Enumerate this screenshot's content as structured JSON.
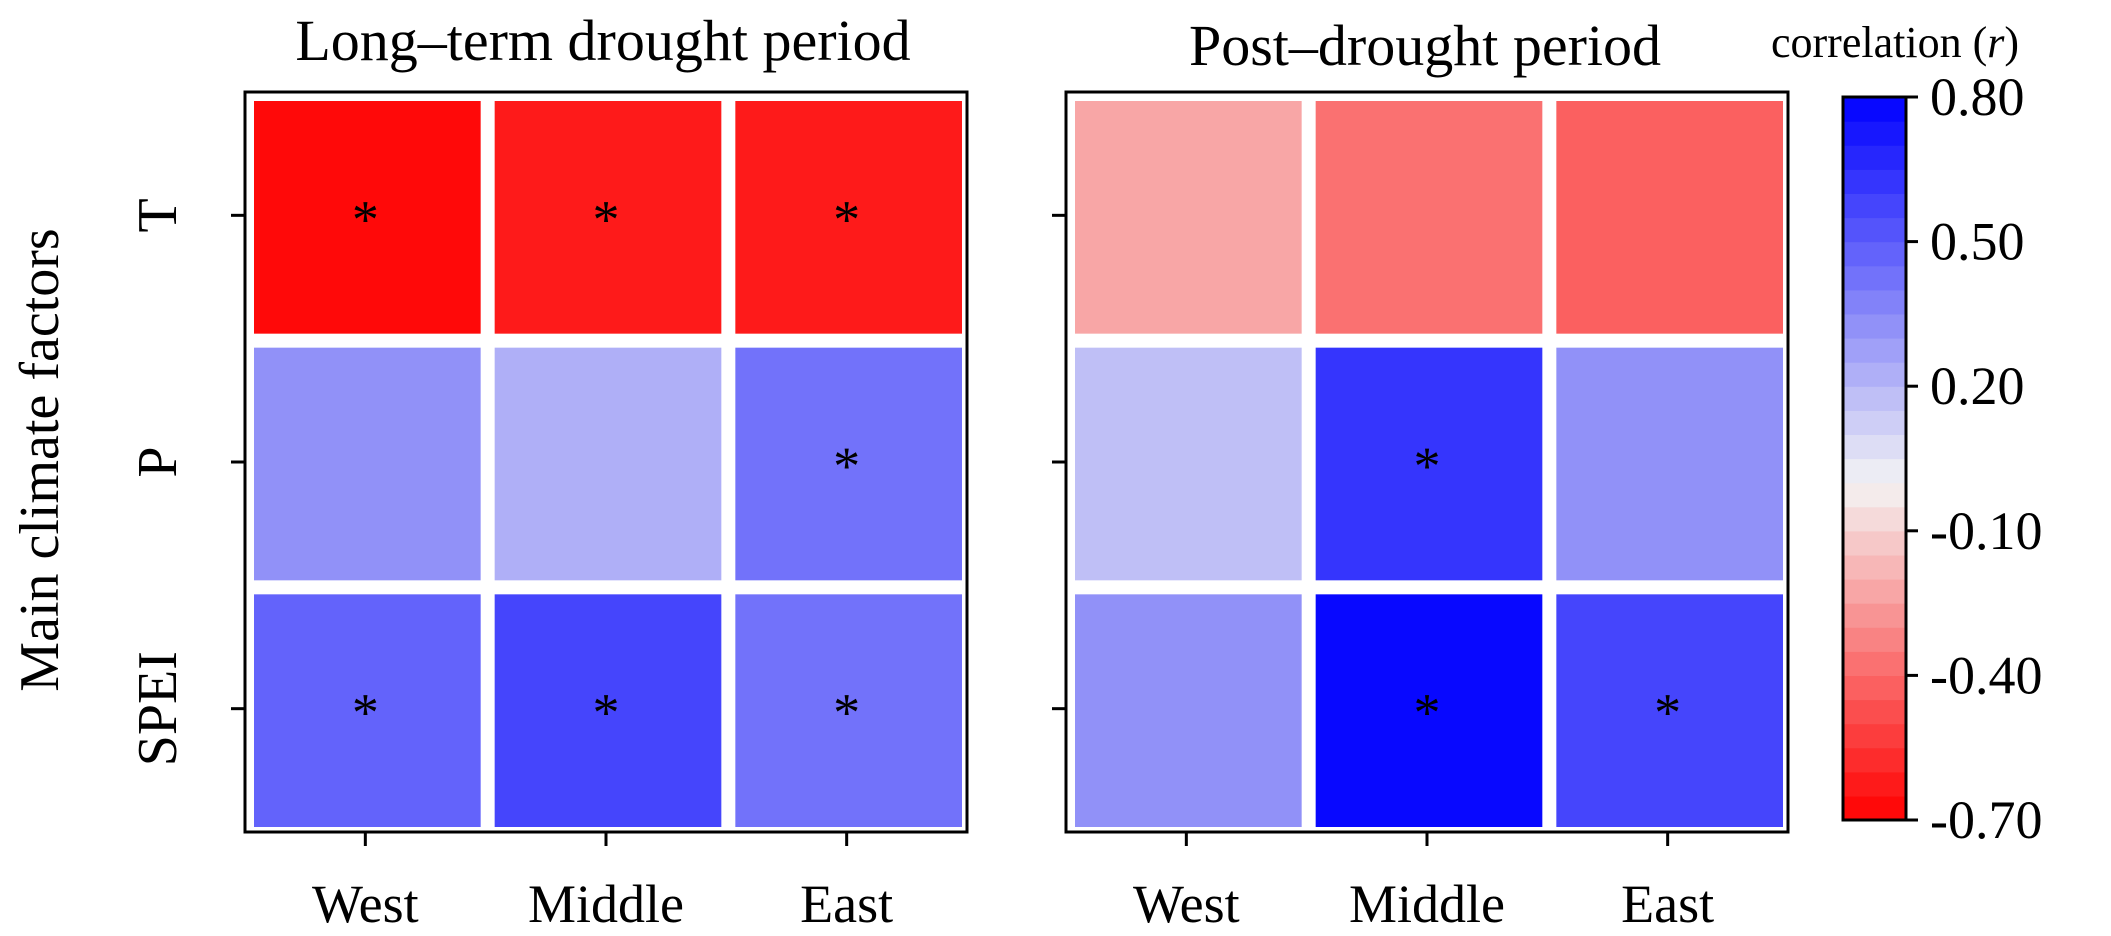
{
  "chart_data": {
    "type": "heatmap",
    "ylabel": "Main climate factors",
    "rows": [
      "T",
      "P",
      "SPEI"
    ],
    "columns": [
      "West",
      "Middle",
      "East"
    ],
    "significance_marker": "*",
    "panels": [
      {
        "title": "Long–term drought period",
        "values": [
          [
            -0.7,
            -0.62,
            -0.6
          ],
          [
            0.32,
            0.23,
            0.45
          ],
          [
            0.5,
            0.55,
            0.45
          ]
        ],
        "significant": [
          [
            true,
            true,
            true
          ],
          [
            false,
            false,
            true
          ],
          [
            true,
            true,
            true
          ]
        ]
      },
      {
        "title": "Post–drought period",
        "values": [
          [
            -0.2,
            -0.38,
            -0.43
          ],
          [
            0.17,
            0.62,
            0.3
          ],
          [
            0.3,
            0.8,
            0.6
          ]
        ],
        "significant": [
          [
            false,
            false,
            false
          ],
          [
            false,
            true,
            false
          ],
          [
            false,
            true,
            true
          ]
        ]
      }
    ],
    "colorbar": {
      "label_prefix": "correlation (",
      "label_var": "r",
      "label_suffix": ")",
      "min": -0.7,
      "max": 0.8,
      "ticks": [
        {
          "value": 0.8,
          "label": "0.80"
        },
        {
          "value": 0.5,
          "label": "0.50"
        },
        {
          "value": 0.2,
          "label": "0.20"
        },
        {
          "value": -0.1,
          "label": "-0.10"
        },
        {
          "value": -0.4,
          "label": "-0.40"
        },
        {
          "value": -0.7,
          "label": "-0.70"
        }
      ],
      "colors": {
        "negative": "#ff0000",
        "neutral": "#f4f4f4",
        "positive": "#0000ff"
      }
    }
  }
}
